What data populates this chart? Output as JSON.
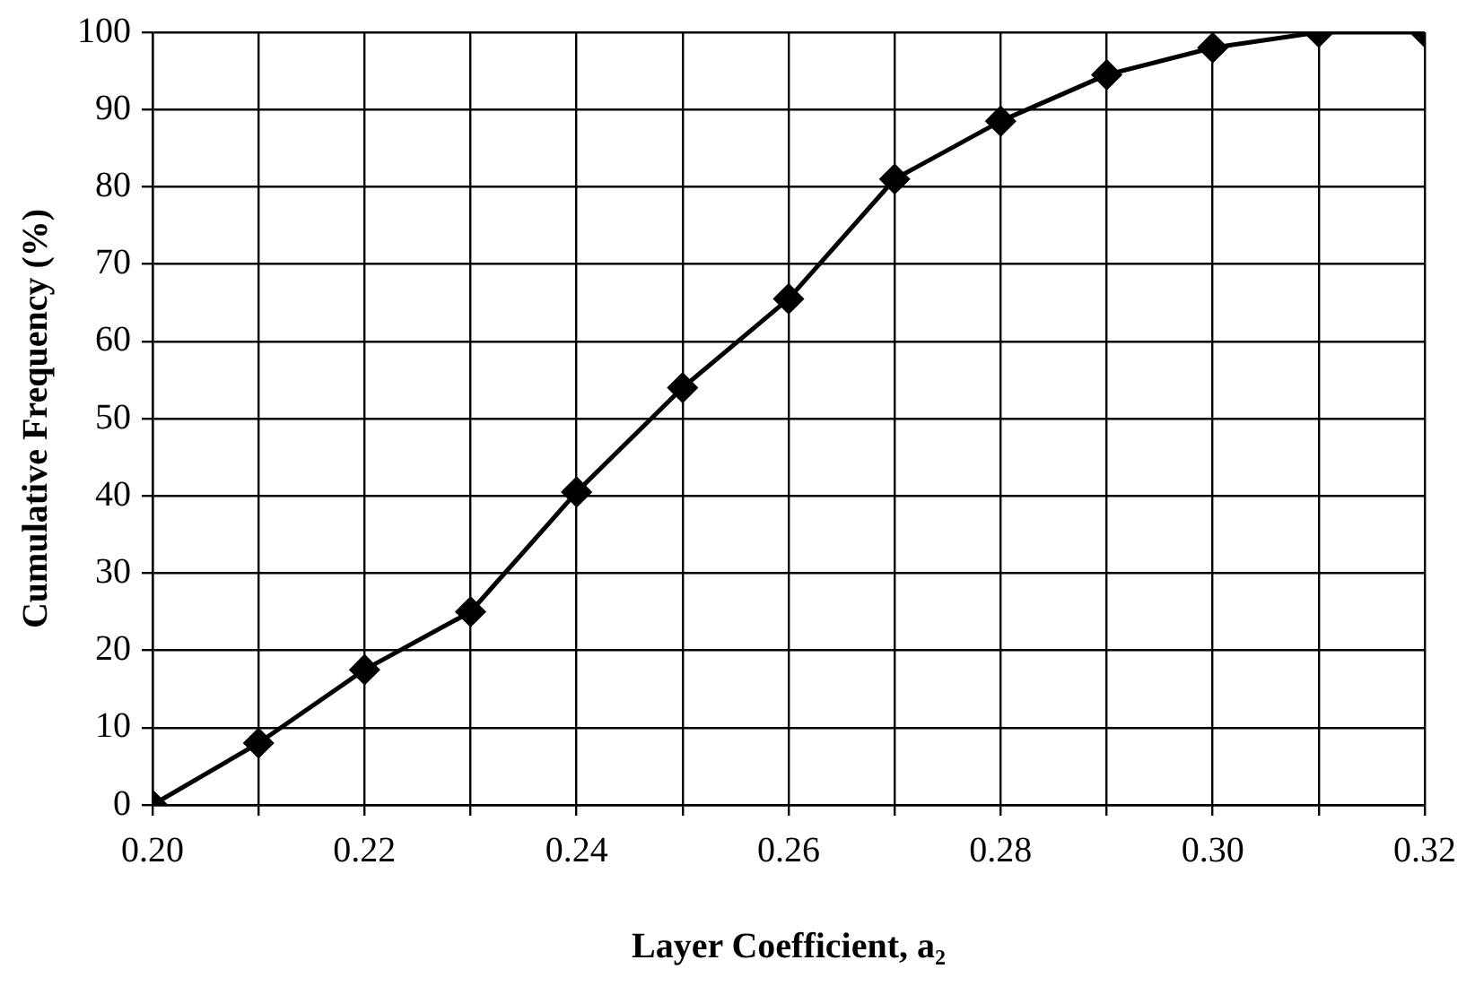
{
  "chart_data": {
    "type": "line",
    "xlabel": "Layer Coefficient, a₂",
    "ylabel": "Cumulative Frequency (%)",
    "x": [
      0.2,
      0.21,
      0.22,
      0.23,
      0.24,
      0.25,
      0.26,
      0.27,
      0.28,
      0.29,
      0.3,
      0.31,
      0.32
    ],
    "series": [
      {
        "color": "#000000",
        "values": [
          0,
          8,
          17.5,
          25,
          40.5,
          54,
          65.5,
          81,
          88.5,
          94.5,
          98,
          100,
          100
        ]
      }
    ],
    "xlim": [
      0.2,
      0.32
    ],
    "xticks": [
      {
        "value": 0.2,
        "label": "0.20"
      },
      {
        "value": 0.21,
        "label": null
      },
      {
        "value": 0.22,
        "label": "0.22"
      },
      {
        "value": 0.23,
        "label": null
      },
      {
        "value": 0.24,
        "label": "0.24"
      },
      {
        "value": 0.25,
        "label": null
      },
      {
        "value": 0.26,
        "label": "0.26"
      },
      {
        "value": 0.27,
        "label": null
      },
      {
        "value": 0.28,
        "label": "0.28"
      },
      {
        "value": 0.29,
        "label": null
      },
      {
        "value": 0.3,
        "label": "0.30"
      },
      {
        "value": 0.31,
        "label": null
      },
      {
        "value": 0.32,
        "label": "0.32"
      }
    ],
    "ylim": [
      0,
      100
    ],
    "yticks": [
      0,
      10,
      20,
      30,
      40,
      50,
      60,
      70,
      80,
      90,
      100
    ],
    "grid": true,
    "legend": false,
    "marker": "diamond",
    "line_style": "solid"
  }
}
